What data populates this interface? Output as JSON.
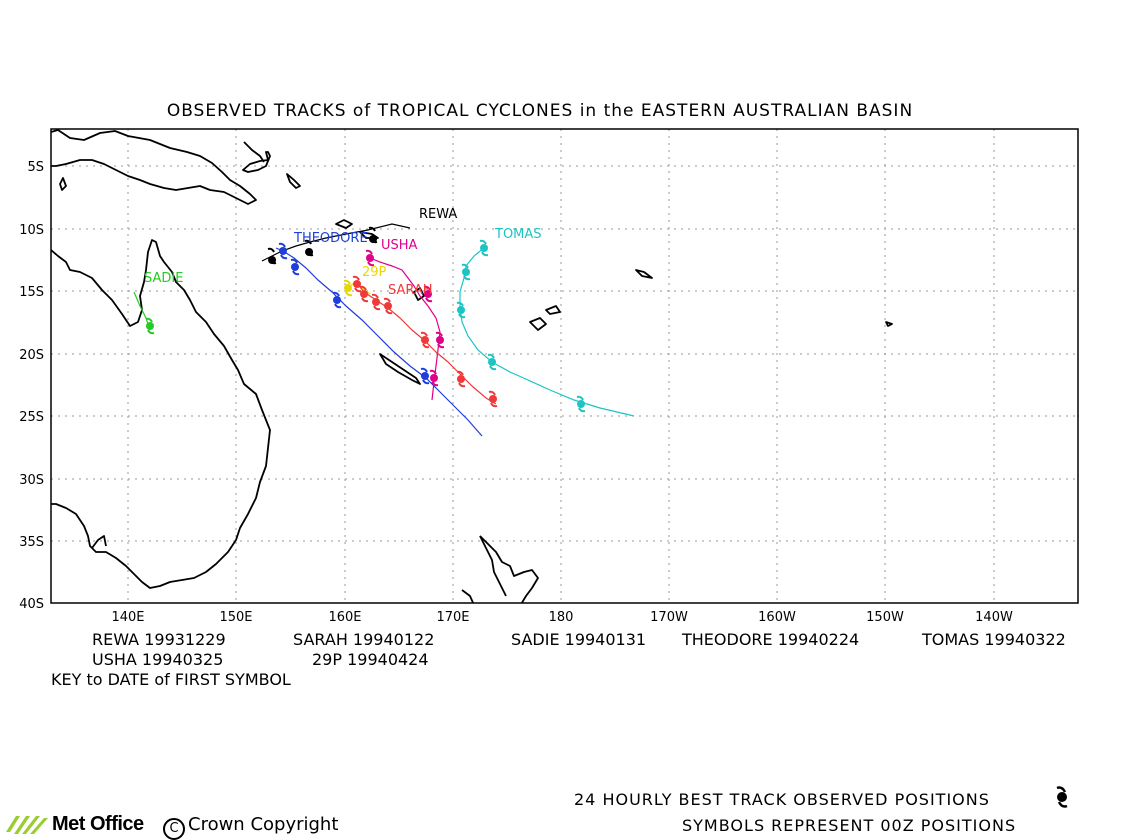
{
  "title": "OBSERVED TRACKS of TROPICAL CYCLONES in the EASTERN AUSTRALIAN BASIN",
  "lat_labels": [
    "5S",
    "10S",
    "15S",
    "20S",
    "25S",
    "30S",
    "35S",
    "40S"
  ],
  "lon_labels": [
    "140E",
    "150E",
    "160E",
    "170E",
    "180",
    "170W",
    "160W",
    "150W",
    "140W"
  ],
  "storms": [
    {
      "name": "REWA",
      "label": "REWA",
      "color": "#000000"
    },
    {
      "name": "THEODORE",
      "label": "THEODORE",
      "color": "#1f3fdd"
    },
    {
      "name": "USHA",
      "label": "USHA",
      "color": "#e0008a"
    },
    {
      "name": "TOMAS",
      "label": "TOMAS",
      "color": "#1cc4c4"
    },
    {
      "name": "29P",
      "label": "29P",
      "color": "#e8d800"
    },
    {
      "name": "SARAH",
      "label": "SARAH",
      "color": "#f03a3a"
    },
    {
      "name": "SADIE",
      "label": "SADIE",
      "color": "#22cc22"
    }
  ],
  "key": {
    "row1": [
      "REWA 19931229",
      "SARAH 19940122",
      "SADIE 19940131",
      "THEODORE 19940224",
      "TOMAS 19940322"
    ],
    "row2": [
      "USHA 19940325",
      "29P 19940424"
    ],
    "note": "KEY to DATE of FIRST SYMBOL"
  },
  "footer": {
    "line1": "24 HOURLY BEST TRACK OBSERVED POSITIONS",
    "line2": "SYMBOLS REPRESENT 00Z POSITIONS",
    "logo": "Met Office",
    "copyright": "Crown Copyright",
    "copyright_symbol": "C"
  }
}
